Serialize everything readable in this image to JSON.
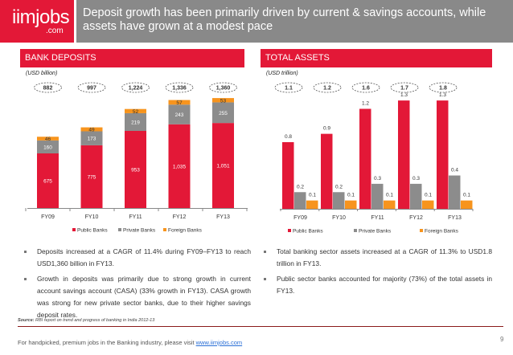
{
  "logo": {
    "main": "iimjobs",
    "suffix": ".com"
  },
  "title": "Deposit growth has been primarily driven by current & savings accounts, while assets have grown at a modest pace",
  "colors": {
    "public": "#e31837",
    "private": "#8c8c8c",
    "foreign": "#f7941d",
    "header": "#e31837",
    "titlebar": "#898989"
  },
  "chart_data": [
    {
      "type": "bar",
      "stacked": true,
      "title": "BANK DEPOSITS",
      "unit_label": "(USD billion)",
      "categories": [
        "FY09",
        "FY10",
        "FY11",
        "FY12",
        "FY13"
      ],
      "totals": [
        "882",
        "997",
        "1,224",
        "1,336",
        "1,360"
      ],
      "series": [
        {
          "name": "Public Banks",
          "values": [
            675,
            775,
            953,
            1035,
            1051
          ],
          "labels": [
            "675",
            "775",
            "953",
            "1,035",
            "1,051"
          ]
        },
        {
          "name": "Private Banks",
          "values": [
            160,
            173,
            219,
            243,
            255
          ],
          "labels": [
            "160",
            "173",
            "219",
            "243",
            "255"
          ]
        },
        {
          "name": "Foreign Banks",
          "values": [
            46,
            49,
            52,
            57,
            53
          ],
          "labels": [
            "46",
            "49",
            "52",
            "57",
            "53"
          ]
        }
      ],
      "ylim": [
        0,
        1400
      ],
      "legend": "bottom"
    },
    {
      "type": "bar",
      "stacked": false,
      "title": "TOTAL ASSETS",
      "unit_label": "(USD trillion)",
      "categories": [
        "FY09",
        "FY10",
        "FY11",
        "FY12",
        "FY13"
      ],
      "totals": [
        "1.1",
        "1.2",
        "1.6",
        "1.7",
        "1.8"
      ],
      "series": [
        {
          "name": "Public Banks",
          "values": [
            0.8,
            0.9,
            1.2,
            1.3,
            1.3
          ],
          "labels": [
            "0.8",
            "0.9",
            "1.2",
            "1.3",
            "1.3"
          ]
        },
        {
          "name": "Private Banks",
          "values": [
            0.2,
            0.2,
            0.3,
            0.3,
            0.4
          ],
          "labels": [
            "0.2",
            "0.2",
            "0.3",
            "0.3",
            "0.4"
          ]
        },
        {
          "name": "Foreign Banks",
          "values": [
            0.1,
            0.1,
            0.1,
            0.1,
            0.1
          ],
          "labels": [
            "0.1",
            "0.1",
            "0.1",
            "0.1",
            "0.1"
          ]
        }
      ],
      "ylim": [
        0,
        1.45
      ],
      "legend": "bottom"
    }
  ],
  "bullets_left": [
    "Deposits increased at a CAGR of 11.4% during FY09–FY13 to reach USD1,360 billion in FY13.",
    "Growth in deposits was primarily due to strong growth in current account savings account (CASA) (33% growth in FY13). CASA growth was strong for new private sector banks, due to their higher savings deposit rates."
  ],
  "bullets_right": [
    "Total banking sector assets increased at a CAGR of 11.3% to USD1.8 trillion in FY13.",
    "Public sector banks accounted for majority (73%) of the total assets in FY13."
  ],
  "source": {
    "label": "Source:",
    "text": " RBI report on trend and progress of banking in India 2012-13"
  },
  "footer": {
    "text": "For handpicked, premium jobs in the Banking industry, please visit ",
    "link": "www.iimjobs.com"
  },
  "page_number": "9"
}
